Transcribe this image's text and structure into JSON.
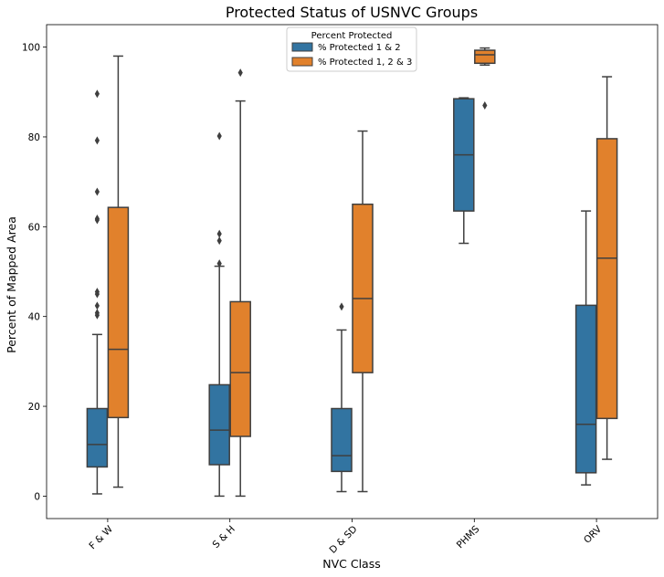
{
  "chart_data": {
    "type": "box",
    "title": "Protected Status of USNVC Groups",
    "xlabel": "NVC Class",
    "ylabel": "Percent of Mapped Area",
    "categories": [
      "F & W",
      "S & H",
      "D & SD",
      "PHMS",
      "ORV"
    ],
    "ylim": [
      -5,
      105
    ],
    "yticks": [
      0,
      20,
      40,
      60,
      80,
      100
    ],
    "grid": false,
    "legend": {
      "title": "Percent Protected",
      "placement": "top-center"
    },
    "series": [
      {
        "name": "% Protected 1 & 2",
        "color": "#3274a1",
        "boxes": [
          {
            "whisker_low": 0.5,
            "q1": 6.5,
            "median": 11.5,
            "q3": 19.5,
            "whisker_high": 36,
            "outliers": [
              40.3,
              40.8,
              42.4,
              45,
              45.5,
              61.5,
              61.8,
              67.8,
              79.2,
              89.6
            ]
          },
          {
            "whisker_low": 0,
            "q1": 7,
            "median": 14.7,
            "q3": 24.8,
            "whisker_high": 51.2,
            "outliers": [
              51.8,
              56.9,
              58.4,
              80.2
            ]
          },
          {
            "whisker_low": 1,
            "q1": 5.5,
            "median": 9,
            "q3": 19.5,
            "whisker_high": 37,
            "outliers": [
              42.2
            ]
          },
          {
            "whisker_low": 56.3,
            "q1": 63.5,
            "median": 76,
            "q3": 88.5,
            "whisker_high": 88.7,
            "outliers": []
          },
          {
            "whisker_low": 2.5,
            "q1": 5.2,
            "median": 16,
            "q3": 42.5,
            "whisker_high": 63.5,
            "outliers": []
          }
        ]
      },
      {
        "name": "% Protected 1, 2 & 3",
        "color": "#e1812c",
        "boxes": [
          {
            "whisker_low": 2,
            "q1": 17.5,
            "median": 32.7,
            "q3": 64.3,
            "whisker_high": 98,
            "outliers": []
          },
          {
            "whisker_low": 0,
            "q1": 13.3,
            "median": 27.5,
            "q3": 43.3,
            "whisker_high": 88,
            "outliers": [
              94.3
            ]
          },
          {
            "whisker_low": 1,
            "q1": 27.5,
            "median": 44,
            "q3": 65,
            "whisker_high": 81.3,
            "outliers": []
          },
          {
            "whisker_low": 96,
            "q1": 96.4,
            "median": 98.3,
            "q3": 99.3,
            "whisker_high": 99.8,
            "outliers": [
              87
            ]
          },
          {
            "whisker_low": 8.2,
            "q1": 17.3,
            "median": 53,
            "q3": 79.6,
            "whisker_high": 93.4,
            "outliers": []
          }
        ]
      }
    ]
  }
}
